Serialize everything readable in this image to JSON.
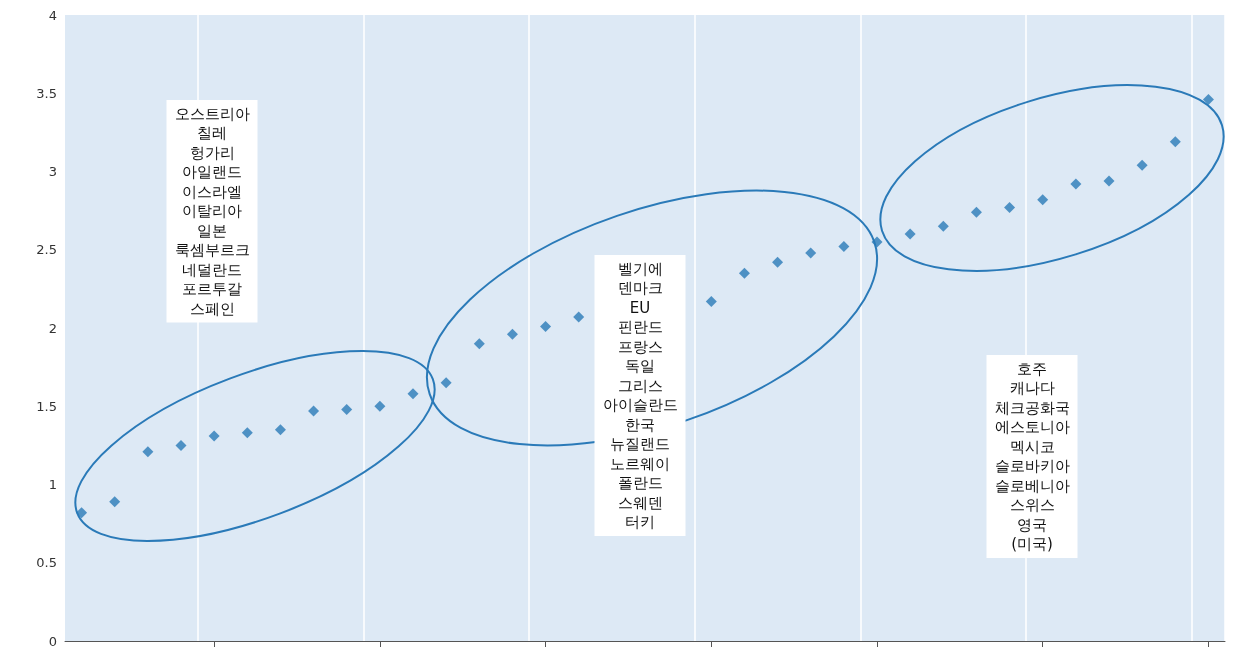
{
  "chart_data": {
    "type": "scatter",
    "categories": [
      null,
      null,
      null,
      null,
      null,
      null,
      null,
      null,
      null,
      null,
      null,
      null,
      null,
      null,
      null,
      null,
      null,
      null,
      null,
      null,
      null,
      null,
      null,
      null,
      null,
      null,
      null,
      null,
      null,
      null,
      null,
      null,
      null,
      null,
      null
    ],
    "series": [
      {
        "color": "#2a7ab8",
        "values": [
          0.82,
          0.89,
          1.21,
          1.25,
          1.31,
          1.33,
          1.35,
          1.47,
          1.48,
          1.5,
          1.58,
          1.65,
          1.9,
          1.96,
          2.01,
          2.07,
          null,
          null,
          null,
          2.17,
          2.35,
          2.42,
          2.48,
          2.52,
          2.55,
          2.6,
          2.65,
          2.74,
          2.77,
          2.82,
          2.92,
          2.94,
          3.04,
          3.19,
          3.46
        ]
      }
    ],
    "ylim": [
      0,
      4
    ],
    "yticks": [
      0,
      0.5,
      1,
      1.5,
      2,
      2.5,
      3,
      3.5,
      4
    ],
    "grid": "x",
    "marker": "diamond",
    "tick_labels": "y",
    "annotations": [
      "오스트리아\n칠레\n헝가리\n아일랜드\n이스라엘\n이탈리아\n일본\n룩셈부르크\n네덜란드\n포르투갈\n스페인",
      "벨기에\n덴마크\nEU\n핀란드\n프랑스\n독일\n그리스\n아이슬란드\n한국\n뉴질랜드\n노르웨이\n폴란드\n스웨덴\n터키",
      "호주\n캐나다\n체크공화국\n에스토니아\n멕시코\n슬로바키아\n슬로베니아\n스위스\n영국\n(미국)"
    ]
  }
}
